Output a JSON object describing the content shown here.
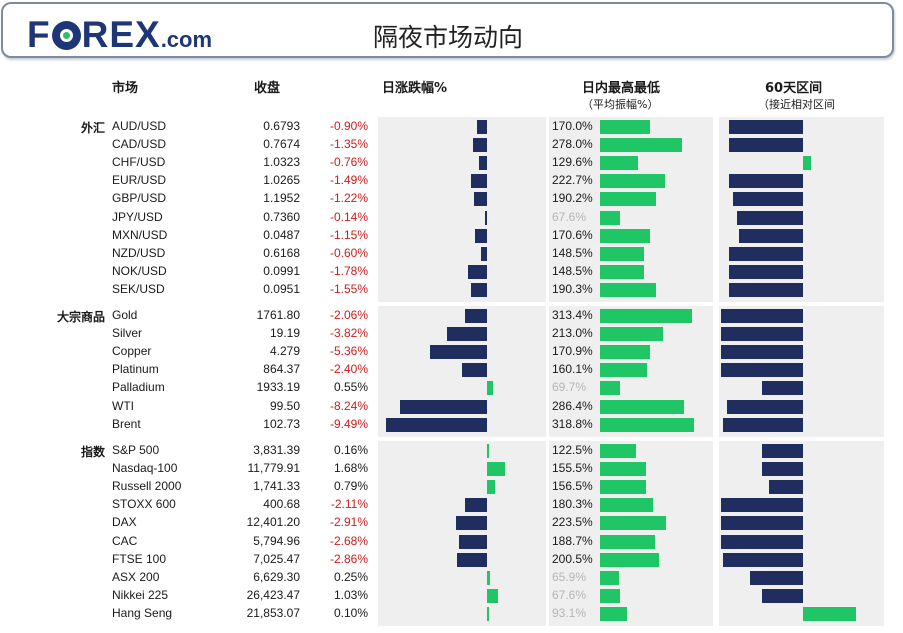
{
  "header": {
    "logo_main": "F",
    "logo_rest": "REX",
    "logo_suffix": ".com",
    "title": "隔夜市场动向"
  },
  "columns": {
    "market": "市场",
    "close": "收盘",
    "daily_change": "日涨跌幅%",
    "intraday": "日内最高最低",
    "intraday_sub": "（平均振幅%）",
    "range60": "60天区间",
    "range60_sub": "（接近相对区间"
  },
  "colors": {
    "negative_bar": "#1f2e5e",
    "positive_bar": "#20c565",
    "negative_text": "#cc1d1d",
    "panel": "#efefef",
    "brand": "#1f3676"
  },
  "chart_data": {
    "type": "table",
    "groups": [
      {
        "name": "外汇",
        "rows": [
          {
            "name": "AUD/USD",
            "close": "0.6793",
            "change": "-0.90%",
            "change_value": -0.9,
            "intraday": "170.0%",
            "intraday_value": 170.0,
            "intraday_muted": false,
            "range60": -0.9
          },
          {
            "name": "CAD/USD",
            "close": "0.7674",
            "change": "-1.35%",
            "change_value": -1.35,
            "intraday": "278.0%",
            "intraday_value": 278.0,
            "intraday_muted": false,
            "range60": -0.9
          },
          {
            "name": "CHF/USD",
            "close": "1.0323",
            "change": "-0.76%",
            "change_value": -0.76,
            "intraday": "129.6%",
            "intraday_value": 129.6,
            "intraday_muted": false,
            "range60": 0.1
          },
          {
            "name": "EUR/USD",
            "close": "1.0265",
            "change": "-1.49%",
            "change_value": -1.49,
            "intraday": "222.7%",
            "intraday_value": 222.7,
            "intraday_muted": false,
            "range60": -0.9
          },
          {
            "name": "GBP/USD",
            "close": "1.1952",
            "change": "-1.22%",
            "change_value": -1.22,
            "intraday": "190.2%",
            "intraday_value": 190.2,
            "intraday_muted": false,
            "range60": -0.85
          },
          {
            "name": "JPY/USD",
            "close": "0.7360",
            "change": "-0.14%",
            "change_value": -0.14,
            "intraday": "67.6%",
            "intraday_value": 67.6,
            "intraday_muted": true,
            "range60": -0.8
          },
          {
            "name": "MXN/USD",
            "close": "0.0487",
            "change": "-1.15%",
            "change_value": -1.15,
            "intraday": "170.6%",
            "intraday_value": 170.6,
            "intraday_muted": false,
            "range60": -0.78
          },
          {
            "name": "NZD/USD",
            "close": "0.6168",
            "change": "-0.60%",
            "change_value": -0.6,
            "intraday": "148.5%",
            "intraday_value": 148.5,
            "intraday_muted": false,
            "range60": -0.9
          },
          {
            "name": "NOK/USD",
            "close": "0.0991",
            "change": "-1.78%",
            "change_value": -1.78,
            "intraday": "148.5%",
            "intraday_value": 148.5,
            "intraday_muted": false,
            "range60": -0.9
          },
          {
            "name": "SEK/USD",
            "close": "0.0951",
            "change": "-1.55%",
            "change_value": -1.55,
            "intraday": "190.3%",
            "intraday_value": 190.3,
            "intraday_muted": false,
            "range60": -0.9
          }
        ]
      },
      {
        "name": "大宗商品",
        "rows": [
          {
            "name": "Gold",
            "close": "1761.80",
            "change": "-2.06%",
            "change_value": -2.06,
            "intraday": "313.4%",
            "intraday_value": 313.4,
            "intraday_muted": false,
            "range60": -1.0
          },
          {
            "name": "Silver",
            "close": "19.19",
            "change": "-3.82%",
            "change_value": -3.82,
            "intraday": "213.0%",
            "intraday_value": 213.0,
            "intraday_muted": false,
            "range60": -1.0
          },
          {
            "name": "Copper",
            "close": "4.279",
            "change": "-5.36%",
            "change_value": -5.36,
            "intraday": "170.9%",
            "intraday_value": 170.9,
            "intraday_muted": false,
            "range60": -1.0
          },
          {
            "name": "Platinum",
            "close": "864.37",
            "change": "-2.40%",
            "change_value": -2.4,
            "intraday": "160.1%",
            "intraday_value": 160.1,
            "intraday_muted": false,
            "range60": -1.0
          },
          {
            "name": "Palladium",
            "close": "1933.19",
            "change": "0.55%",
            "change_value": 0.55,
            "intraday": "69.7%",
            "intraday_value": 69.7,
            "intraday_muted": true,
            "range60": -0.5
          },
          {
            "name": "WTI",
            "close": "99.50",
            "change": "-8.24%",
            "change_value": -8.24,
            "intraday": "286.4%",
            "intraday_value": 286.4,
            "intraday_muted": false,
            "range60": -0.93
          },
          {
            "name": "Brent",
            "close": "102.73",
            "change": "-9.49%",
            "change_value": -9.49,
            "intraday": "318.8%",
            "intraday_value": 318.8,
            "intraday_muted": false,
            "range60": -0.97
          }
        ]
      },
      {
        "name": "指数",
        "rows": [
          {
            "name": "S&P 500",
            "close": "3,831.39",
            "change": "0.16%",
            "change_value": 0.16,
            "intraday": "122.5%",
            "intraday_value": 122.5,
            "intraday_muted": false,
            "range60": -0.5
          },
          {
            "name": "Nasdaq-100",
            "close": "11,779.91",
            "change": "1.68%",
            "change_value": 1.68,
            "intraday": "155.5%",
            "intraday_value": 155.5,
            "intraday_muted": false,
            "range60": -0.5
          },
          {
            "name": "Russell 2000",
            "close": "1,741.33",
            "change": "0.79%",
            "change_value": 0.79,
            "intraday": "156.5%",
            "intraday_value": 156.5,
            "intraday_muted": false,
            "range60": -0.42
          },
          {
            "name": "STOXX 600",
            "close": "400.68",
            "change": "-2.11%",
            "change_value": -2.11,
            "intraday": "180.3%",
            "intraday_value": 180.3,
            "intraday_muted": false,
            "range60": -1.0
          },
          {
            "name": "DAX",
            "close": "12,401.20",
            "change": "-2.91%",
            "change_value": -2.91,
            "intraday": "223.5%",
            "intraday_value": 223.5,
            "intraday_muted": false,
            "range60": -1.0
          },
          {
            "name": "CAC",
            "close": "5,794.96",
            "change": "-2.68%",
            "change_value": -2.68,
            "intraday": "188.7%",
            "intraday_value": 188.7,
            "intraday_muted": false,
            "range60": -1.0
          },
          {
            "name": "FTSE 100",
            "close": "7,025.47",
            "change": "-2.86%",
            "change_value": -2.86,
            "intraday": "200.5%",
            "intraday_value": 200.5,
            "intraday_muted": false,
            "range60": -0.97
          },
          {
            "name": "ASX 200",
            "close": "6,629.30",
            "change": "0.25%",
            "change_value": 0.25,
            "intraday": "65.9%",
            "intraday_value": 65.9,
            "intraday_muted": true,
            "range60": -0.65
          },
          {
            "name": "Nikkei 225",
            "close": "26,423.47",
            "change": "1.03%",
            "change_value": 1.03,
            "intraday": "67.6%",
            "intraday_value": 67.6,
            "intraday_muted": true,
            "range60": -0.5
          },
          {
            "name": "Hang Seng",
            "close": "21,853.07",
            "change": "0.10%",
            "change_value": 0.1,
            "intraday": "93.1%",
            "intraday_value": 93.1,
            "intraday_muted": true,
            "range60": 0.65
          }
        ]
      }
    ]
  }
}
